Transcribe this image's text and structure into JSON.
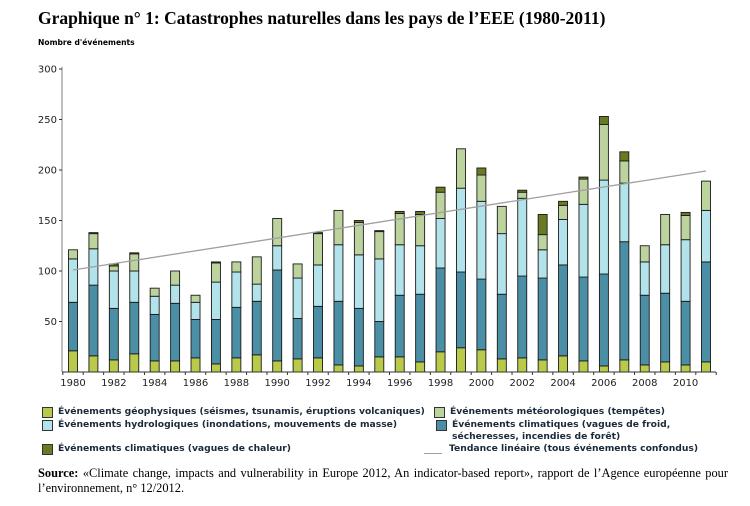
{
  "title": "Graphique n° 1: Catastrophes naturelles dans les pays de l’EEE (1980-2011)",
  "chart_data": {
    "type": "bar",
    "stacked": true,
    "title": "Graphique n° 1: Catastrophes naturelles dans les pays de l’EEE (1980-2011)",
    "ylabel": "Nombre d'événements",
    "xlabel": "",
    "ylim": [
      0,
      300
    ],
    "yticks": [
      50,
      100,
      150,
      200,
      250,
      300
    ],
    "xtick_labels": [
      "1980",
      "1982",
      "1984",
      "1986",
      "1988",
      "1990",
      "1992",
      "1994",
      "1996",
      "1998",
      "2000",
      "2002",
      "2004",
      "2006",
      "2008",
      "2010"
    ],
    "grid": false,
    "legend_position": "bottom",
    "categories": [
      "1980",
      "1981",
      "1982",
      "1983",
      "1984",
      "1985",
      "1986",
      "1987",
      "1988",
      "1989",
      "1990",
      "1991",
      "1992",
      "1993",
      "1994",
      "1995",
      "1996",
      "1997",
      "1998",
      "1999",
      "2000",
      "2001",
      "2002",
      "2003",
      "2004",
      "2005",
      "2006",
      "2007",
      "2008",
      "2009",
      "2010",
      "2011"
    ],
    "series": [
      {
        "name": "Événements géophysiques (séismes, tsunamis, éruptions volcaniques)",
        "color": "#b9c94a",
        "values": [
          21,
          16,
          12,
          18,
          11,
          11,
          14,
          8,
          14,
          17,
          11,
          13,
          14,
          7,
          6,
          15,
          15,
          10,
          20,
          24,
          22,
          13,
          14,
          12,
          16,
          11,
          6,
          12,
          7,
          10,
          7,
          10
        ]
      },
      {
        "name": "Événements climatiques (vagues de froid, sécheresses, incendies de forêt)",
        "color": "#4a8fa6",
        "values": [
          48,
          70,
          51,
          51,
          46,
          57,
          38,
          44,
          50,
          53,
          90,
          40,
          51,
          63,
          57,
          35,
          61,
          67,
          83,
          75,
          70,
          64,
          81,
          81,
          90,
          83,
          91,
          117,
          69,
          68,
          63,
          99
        ]
      },
      {
        "name": "Événements hydrologiques (inondations, mouvements de masse)",
        "color": "#b2e2ea",
        "values": [
          43,
          36,
          37,
          31,
          18,
          18,
          17,
          37,
          35,
          17,
          24,
          40,
          41,
          56,
          53,
          62,
          50,
          48,
          49,
          83,
          77,
          60,
          77,
          28,
          45,
          72,
          93,
          58,
          33,
          48,
          61,
          51
        ]
      },
      {
        "name": "Événements météorologiques (tempêtes)",
        "color": "#bdd39d",
        "values": [
          9,
          15,
          5,
          17,
          8,
          14,
          7,
          19,
          10,
          27,
          27,
          14,
          31,
          34,
          32,
          27,
          31,
          31,
          26,
          39,
          26,
          27,
          6,
          15,
          14,
          25,
          55,
          22,
          16,
          30,
          24,
          29
        ]
      },
      {
        "name": "Événements climatiques (vagues de chaleur)",
        "color": "#6a7a22",
        "values": [
          0,
          1,
          2,
          1,
          0,
          0,
          0,
          1,
          0,
          0,
          0,
          0,
          1,
          0,
          2,
          1,
          2,
          3,
          5,
          0,
          7,
          0,
          2,
          20,
          4,
          2,
          8,
          9,
          0,
          0,
          3,
          0
        ]
      }
    ],
    "trend": {
      "name": "Tendance linéaire (tous événements confondus)",
      "color": "#a0a0a0",
      "start": {
        "x": "1980",
        "y": 101
      },
      "end": {
        "x": "2011",
        "y": 199
      }
    }
  },
  "legend": [
    {
      "label": "Événements géophysiques (séismes, tsunamis, éruptions volcaniques)",
      "color": "#b9c94a"
    },
    {
      "label": "Événements météorologiques (tempêtes)",
      "color": "#bdd39d"
    },
    {
      "label": "Événements hydrologiques (inondations, mouvements de masse)",
      "color": "#b2e2ea"
    },
    {
      "label_line1": "Événements climatiques (vagues de froid,",
      "label_line2": "sécheresses, incendies de forêt)",
      "color": "#4a8fa6"
    },
    {
      "label": "Événements climatiques (vagues de chaleur)",
      "color": "#6a7a22"
    },
    {
      "label": "Tendance linéaire (tous événements confondus)",
      "color": "#a0a0a0"
    }
  ],
  "source": {
    "label": "Source:",
    "text": " «Climate change, impacts and vulnerability in Europe 2012, An indicator-based report», rapport de l’Agence européenne pour l’environnement, n° 12/2012."
  }
}
